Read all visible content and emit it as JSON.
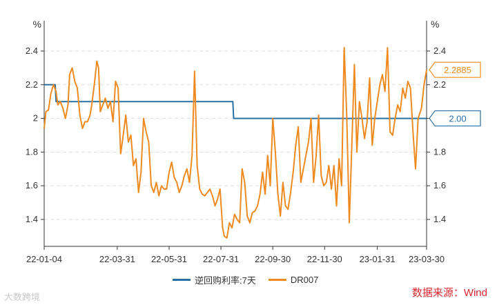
{
  "chart_data": {
    "type": "line",
    "left_axis_unit": "%",
    "right_axis_unit": "%",
    "ylim": [
      1.24,
      2.49
    ],
    "yticks": [
      "1.4",
      "1.6",
      "1.8",
      "2",
      "2.2",
      "2.4"
    ],
    "right_yticks": [
      "1.4",
      "1.6",
      "1.8",
      "2.0",
      "2.2",
      "2.4"
    ],
    "x_start": "22-01-04",
    "x_end": "23-03-30",
    "xticks": [
      "22-01-04",
      "22-03-31",
      "22-05-31",
      "22-07-31",
      "22-09-30",
      "22-11-30",
      "23-01-31",
      "23-03-30"
    ],
    "grid": true,
    "legend_position": "bottom",
    "series": [
      {
        "name": "逆回购利率:7天",
        "color": "#2a6fa1",
        "points": [
          [
            "22-01-04",
            2.2
          ],
          [
            "22-01-17",
            2.2
          ],
          [
            "22-01-18",
            2.1
          ],
          [
            "22-08-14",
            2.1
          ],
          [
            "22-08-15",
            2.0
          ],
          [
            "23-03-30",
            2.0
          ]
        ],
        "last_label": "2.00"
      },
      {
        "name": "DR007",
        "color": "#ee8a1f",
        "points": [
          [
            "22-01-04",
            1.94
          ],
          [
            "22-01-06",
            2.04
          ],
          [
            "22-01-09",
            2.05
          ],
          [
            "22-01-12",
            2.15
          ],
          [
            "22-01-15",
            2.2
          ],
          [
            "22-01-18",
            2.16
          ],
          [
            "22-01-20",
            2.08
          ],
          [
            "22-01-23",
            2.1
          ],
          [
            "22-01-26",
            2.06
          ],
          [
            "22-01-29",
            2.0
          ],
          [
            "22-02-01",
            2.08
          ],
          [
            "22-02-03",
            2.26
          ],
          [
            "22-02-06",
            2.3
          ],
          [
            "22-02-09",
            2.22
          ],
          [
            "22-02-12",
            2.18
          ],
          [
            "22-02-15",
            2.02
          ],
          [
            "22-02-18",
            1.94
          ],
          [
            "22-02-21",
            1.98
          ],
          [
            "22-02-24",
            1.98
          ],
          [
            "22-02-27",
            2.02
          ],
          [
            "22-03-01",
            2.08
          ],
          [
            "22-03-04",
            2.2
          ],
          [
            "22-03-07",
            2.34
          ],
          [
            "22-03-09",
            2.3
          ],
          [
            "22-03-11",
            2.04
          ],
          [
            "22-03-14",
            2.08
          ],
          [
            "22-03-17",
            2.12
          ],
          [
            "22-03-20",
            2.06
          ],
          [
            "22-03-23",
            2.1
          ],
          [
            "22-03-26",
            1.98
          ],
          [
            "22-03-29",
            2.22
          ],
          [
            "22-04-01",
            2.18
          ],
          [
            "22-04-04",
            1.79
          ],
          [
            "22-04-07",
            1.9
          ],
          [
            "22-04-10",
            2.02
          ],
          [
            "22-04-13",
            1.86
          ],
          [
            "22-04-16",
            1.9
          ],
          [
            "22-04-19",
            1.72
          ],
          [
            "22-04-22",
            1.76
          ],
          [
            "22-04-25",
            1.56
          ],
          [
            "22-04-28",
            1.68
          ],
          [
            "22-05-01",
            2.0
          ],
          [
            "22-05-04",
            1.92
          ],
          [
            "22-05-07",
            1.86
          ],
          [
            "22-05-10",
            1.6
          ],
          [
            "22-05-13",
            1.56
          ],
          [
            "22-05-16",
            1.62
          ],
          [
            "22-05-19",
            1.54
          ],
          [
            "22-05-22",
            1.6
          ],
          [
            "22-05-25",
            1.58
          ],
          [
            "22-05-28",
            1.58
          ],
          [
            "22-05-31",
            1.68
          ],
          [
            "22-06-03",
            1.74
          ],
          [
            "22-06-06",
            1.65
          ],
          [
            "22-06-09",
            1.62
          ],
          [
            "22-06-12",
            1.56
          ],
          [
            "22-06-15",
            1.6
          ],
          [
            "22-06-18",
            1.66
          ],
          [
            "22-06-21",
            1.7
          ],
          [
            "22-06-24",
            1.62
          ],
          [
            "22-06-27",
            1.78
          ],
          [
            "22-06-30",
            2.28
          ],
          [
            "22-07-03",
            1.72
          ],
          [
            "22-07-06",
            1.58
          ],
          [
            "22-07-09",
            1.55
          ],
          [
            "22-07-12",
            1.54
          ],
          [
            "22-07-15",
            1.56
          ],
          [
            "22-07-18",
            1.58
          ],
          [
            "22-07-21",
            1.54
          ],
          [
            "22-07-24",
            1.48
          ],
          [
            "22-07-27",
            1.52
          ],
          [
            "22-07-30",
            1.58
          ],
          [
            "22-08-02",
            1.35
          ],
          [
            "22-08-04",
            1.3
          ],
          [
            "22-08-07",
            1.29
          ],
          [
            "22-08-10",
            1.38
          ],
          [
            "22-08-13",
            1.35
          ],
          [
            "22-08-16",
            1.43
          ],
          [
            "22-08-19",
            1.4
          ],
          [
            "22-08-22",
            1.38
          ],
          [
            "22-08-25",
            1.7
          ],
          [
            "22-08-28",
            1.62
          ],
          [
            "22-08-31",
            1.42
          ],
          [
            "22-09-03",
            1.38
          ],
          [
            "22-09-06",
            1.44
          ],
          [
            "22-09-09",
            1.45
          ],
          [
            "22-09-12",
            1.48
          ],
          [
            "22-09-15",
            1.55
          ],
          [
            "22-09-18",
            1.68
          ],
          [
            "22-09-21",
            1.55
          ],
          [
            "22-09-24",
            1.78
          ],
          [
            "22-09-27",
            1.6
          ],
          [
            "22-09-30",
            2.0
          ],
          [
            "22-10-03",
            1.8
          ],
          [
            "22-10-06",
            1.55
          ],
          [
            "22-10-09",
            1.42
          ],
          [
            "22-10-12",
            1.62
          ],
          [
            "22-10-15",
            1.48
          ],
          [
            "22-10-18",
            1.46
          ],
          [
            "22-10-21",
            1.56
          ],
          [
            "22-10-24",
            1.68
          ],
          [
            "22-10-27",
            1.84
          ],
          [
            "22-10-30",
            1.95
          ],
          [
            "22-11-02",
            1.62
          ],
          [
            "22-11-05",
            1.7
          ],
          [
            "22-11-08",
            1.78
          ],
          [
            "22-11-11",
            1.86
          ],
          [
            "22-11-14",
            2.0
          ],
          [
            "22-11-17",
            1.62
          ],
          [
            "22-11-20",
            1.78
          ],
          [
            "22-11-23",
            2.02
          ],
          [
            "22-11-26",
            1.66
          ],
          [
            "22-11-29",
            1.6
          ],
          [
            "22-12-02",
            1.62
          ],
          [
            "22-12-05",
            1.72
          ],
          [
            "22-12-08",
            1.58
          ],
          [
            "22-12-11",
            1.72
          ],
          [
            "22-12-14",
            1.48
          ],
          [
            "22-12-17",
            1.76
          ],
          [
            "22-12-20",
            1.6
          ],
          [
            "22-12-23",
            2.42
          ],
          [
            "22-12-26",
            2.02
          ],
          [
            "22-12-29",
            1.38
          ],
          [
            "23-01-01",
            1.84
          ],
          [
            "23-01-04",
            2.32
          ],
          [
            "23-01-07",
            1.8
          ],
          [
            "23-01-10",
            2.1
          ],
          [
            "23-01-13",
            2.0
          ],
          [
            "23-01-16",
            1.88
          ],
          [
            "23-01-19",
            1.98
          ],
          [
            "23-01-22",
            2.24
          ],
          [
            "23-01-25",
            1.84
          ],
          [
            "23-01-28",
            2.0
          ],
          [
            "23-01-31",
            2.1
          ],
          [
            "23-02-03",
            2.2
          ],
          [
            "23-02-06",
            2.26
          ],
          [
            "23-02-09",
            2.16
          ],
          [
            "23-02-12",
            2.42
          ],
          [
            "23-02-15",
            1.92
          ],
          [
            "23-02-18",
            1.9
          ],
          [
            "23-02-21",
            2.0
          ],
          [
            "23-02-24",
            2.08
          ],
          [
            "23-02-27",
            2.04
          ],
          [
            "23-03-02",
            2.18
          ],
          [
            "23-03-05",
            2.12
          ],
          [
            "23-03-08",
            2.22
          ],
          [
            "23-03-11",
            2.18
          ],
          [
            "23-03-14",
            1.92
          ],
          [
            "23-03-17",
            1.7
          ],
          [
            "23-03-20",
            2.0
          ],
          [
            "23-03-24",
            2.06
          ],
          [
            "23-03-27",
            2.2
          ],
          [
            "23-03-30",
            2.2885
          ]
        ],
        "last_label": "2.2885"
      }
    ]
  },
  "source_text": "数据来源：Wind",
  "watermark_text": "大数跨境"
}
